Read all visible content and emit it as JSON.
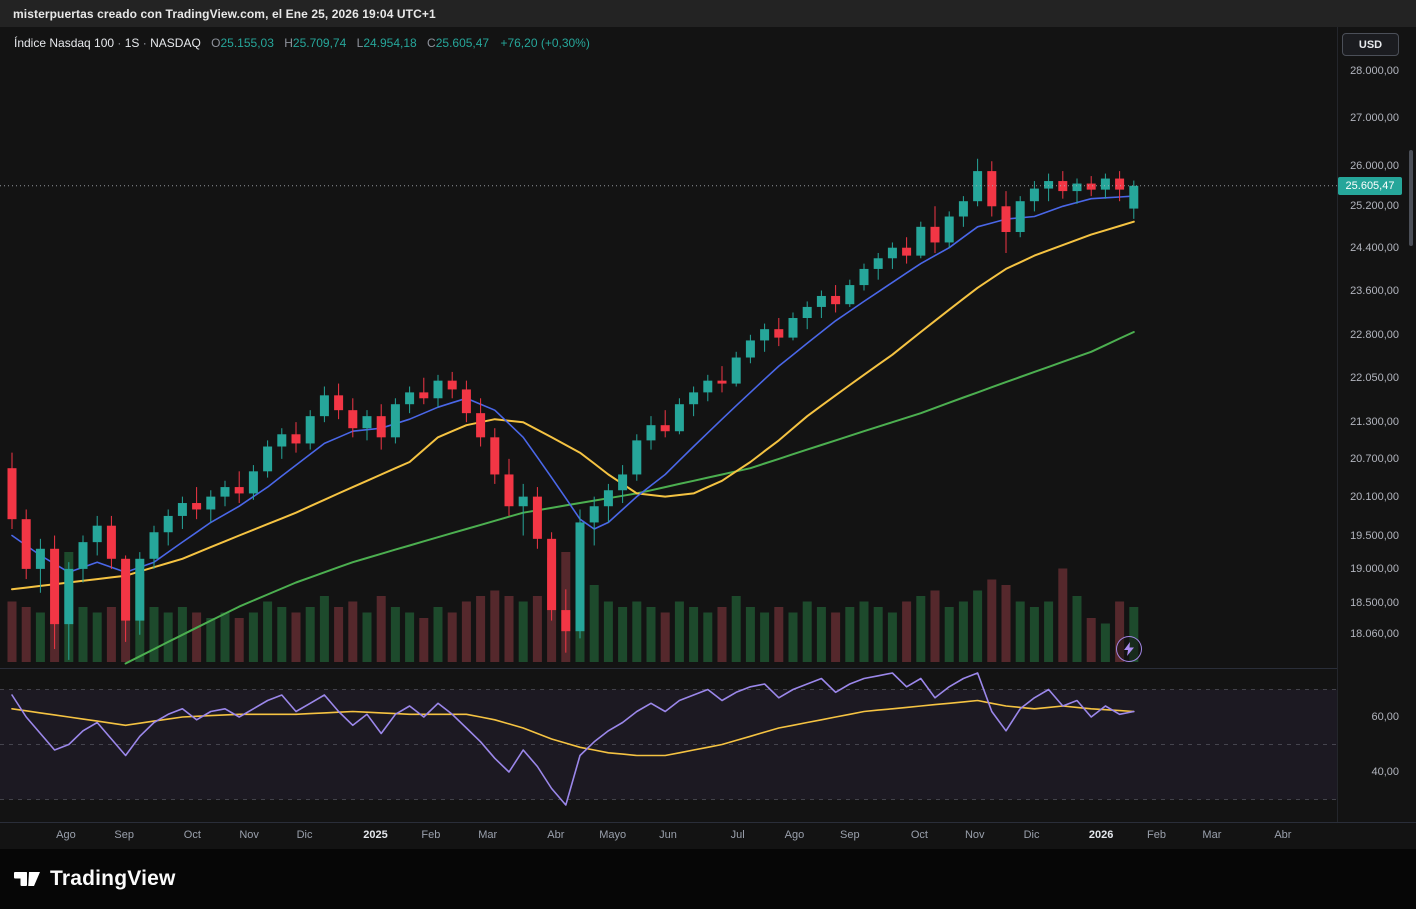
{
  "attribution": "misterpuertas creado con TradingView.com, el Ene 25, 2026 19:04 UTC+1",
  "currency_button": "USD",
  "price_label": "25.605,47",
  "logo_text": "TradingView",
  "legend": {
    "symbol": "Índice Nasdaq 100",
    "sep": " · ",
    "interval": "1S",
    "exchange": "NASDAQ",
    "o_label": "O",
    "o": "25.155,03",
    "h_label": "H",
    "h": "25.709,74",
    "l_label": "L",
    "l": "24.954,18",
    "c_label": "C",
    "c": "25.605,47",
    "change": "+76,20 (+0,30%)"
  },
  "colors": {
    "up": "#26a69a",
    "down": "#f23645",
    "ma_fast": "#4a67e8",
    "ma_mid": "#f5c342",
    "ma_slow": "#4caf50",
    "rsi": "#9b87ea",
    "rsi_ma": "#f5c342",
    "vol_up": "#1d4a2c",
    "vol_down": "#55282c",
    "last_price_line": "#b2b5be"
  },
  "price_axis": [
    {
      "label": "28.000,00",
      "value": 28000
    },
    {
      "label": "27.000,00",
      "value": 27000
    },
    {
      "label": "26.000,00",
      "value": 26000
    },
    {
      "label": "25.200,00",
      "value": 25200
    },
    {
      "label": "24.400,00",
      "value": 24400
    },
    {
      "label": "23.600,00",
      "value": 23600
    },
    {
      "label": "22.800,00",
      "value": 22800
    },
    {
      "label": "22.050,00",
      "value": 22050
    },
    {
      "label": "21.300,00",
      "value": 21300
    },
    {
      "label": "20.700,00",
      "value": 20700
    },
    {
      "label": "20.100,00",
      "value": 20100
    },
    {
      "label": "19.500,00",
      "value": 19500
    },
    {
      "label": "19.000,00",
      "value": 19000
    },
    {
      "label": "18.500,00",
      "value": 18500
    },
    {
      "label": "18.060,00",
      "value": 18060
    }
  ],
  "rsi_axis": [
    {
      "label": "60,00",
      "value": 60
    },
    {
      "label": "40,00",
      "value": 40
    }
  ],
  "time_axis": [
    {
      "label": "Ago",
      "week": 3.8,
      "year": false
    },
    {
      "label": "Sep",
      "week": 7.9,
      "year": false
    },
    {
      "label": "Oct",
      "week": 12.7,
      "year": false
    },
    {
      "label": "Nov",
      "week": 16.7,
      "year": false
    },
    {
      "label": "Dic",
      "week": 20.6,
      "year": false
    },
    {
      "label": "2025",
      "week": 25.6,
      "year": true
    },
    {
      "label": "Feb",
      "week": 29.5,
      "year": false
    },
    {
      "label": "Mar",
      "week": 33.5,
      "year": false
    },
    {
      "label": "Abr",
      "week": 38.3,
      "year": false
    },
    {
      "label": "Mayo",
      "week": 42.3,
      "year": false
    },
    {
      "label": "Jun",
      "week": 46.2,
      "year": false
    },
    {
      "label": "Jul",
      "week": 51.1,
      "year": false
    },
    {
      "label": "Ago",
      "week": 55.1,
      "year": false
    },
    {
      "label": "Sep",
      "week": 59.0,
      "year": false
    },
    {
      "label": "Oct",
      "week": 63.9,
      "year": false
    },
    {
      "label": "Nov",
      "week": 67.8,
      "year": false
    },
    {
      "label": "Dic",
      "week": 71.8,
      "year": false
    },
    {
      "label": "2026",
      "week": 76.7,
      "year": true
    },
    {
      "label": "Feb",
      "week": 80.6,
      "year": false
    },
    {
      "label": "Mar",
      "week": 84.5,
      "year": false
    },
    {
      "label": "Abr",
      "week": 89.5,
      "year": false
    }
  ],
  "chart_data": {
    "type": "candlestick",
    "title": "Índice Nasdaq 100",
    "interval": "1S (weekly)",
    "exchange": "NASDAQ",
    "currency": "USD",
    "last_price": 25605.47,
    "change": 76.2,
    "change_pct": 0.3,
    "ohlc_current": {
      "o": 25155.03,
      "h": 25709.74,
      "l": 24954.18,
      "c": 25605.47
    },
    "y_scale": "log",
    "ylim": [
      17700,
      28400
    ],
    "rsi_bands": [
      70,
      50,
      30
    ],
    "candles": [
      [
        20550,
        20800,
        19600,
        19750,
        0.55
      ],
      [
        19750,
        19900,
        18850,
        19000,
        0.5
      ],
      [
        19000,
        19450,
        18650,
        19300,
        0.45
      ],
      [
        19300,
        19500,
        17850,
        18200,
        0.8
      ],
      [
        18200,
        19100,
        17700,
        19000,
        1.0
      ],
      [
        19000,
        19500,
        18800,
        19400,
        0.5
      ],
      [
        19400,
        19800,
        19200,
        19650,
        0.45
      ],
      [
        19650,
        19800,
        19000,
        19150,
        0.5
      ],
      [
        19150,
        19200,
        17950,
        18250,
        0.85
      ],
      [
        18250,
        19250,
        18050,
        19150,
        0.8
      ],
      [
        19150,
        19650,
        19000,
        19550,
        0.5
      ],
      [
        19550,
        19900,
        19350,
        19800,
        0.45
      ],
      [
        19800,
        20100,
        19600,
        20000,
        0.5
      ],
      [
        20000,
        20250,
        19750,
        19900,
        0.45
      ],
      [
        19900,
        20200,
        19700,
        20100,
        0.4
      ],
      [
        20100,
        20350,
        19950,
        20250,
        0.45
      ],
      [
        20250,
        20500,
        20000,
        20150,
        0.4
      ],
      [
        20150,
        20600,
        20050,
        20500,
        0.45
      ],
      [
        20500,
        21000,
        20400,
        20900,
        0.55
      ],
      [
        20900,
        21200,
        20700,
        21100,
        0.5
      ],
      [
        21100,
        21300,
        20800,
        20950,
        0.45
      ],
      [
        20950,
        21500,
        20850,
        21400,
        0.5
      ],
      [
        21400,
        21900,
        21300,
        21750,
        0.6
      ],
      [
        21750,
        21950,
        21350,
        21500,
        0.5
      ],
      [
        21500,
        21700,
        21050,
        21200,
        0.55
      ],
      [
        21200,
        21500,
        21000,
        21400,
        0.45
      ],
      [
        21400,
        21600,
        20850,
        21050,
        0.6
      ],
      [
        21050,
        21700,
        20950,
        21600,
        0.5
      ],
      [
        21600,
        21900,
        21450,
        21800,
        0.45
      ],
      [
        21800,
        22050,
        21600,
        21700,
        0.4
      ],
      [
        21700,
        22100,
        21550,
        22000,
        0.5
      ],
      [
        22000,
        22150,
        21700,
        21850,
        0.45
      ],
      [
        21850,
        22000,
        21300,
        21450,
        0.55
      ],
      [
        21450,
        21700,
        20900,
        21050,
        0.6
      ],
      [
        21050,
        21200,
        20300,
        20450,
        0.65
      ],
      [
        20450,
        20700,
        19800,
        19950,
        0.6
      ],
      [
        19950,
        20300,
        19500,
        20100,
        0.55
      ],
      [
        20100,
        20250,
        19300,
        19450,
        0.6
      ],
      [
        19450,
        19550,
        18250,
        18400,
        0.95
      ],
      [
        18400,
        18700,
        17800,
        18100,
        1.0
      ],
      [
        18100,
        19900,
        18000,
        19700,
        0.9
      ],
      [
        19700,
        20100,
        19350,
        19950,
        0.7
      ],
      [
        19950,
        20300,
        19700,
        20200,
        0.55
      ],
      [
        20200,
        20600,
        20000,
        20450,
        0.5
      ],
      [
        20450,
        21100,
        20350,
        21000,
        0.55
      ],
      [
        21000,
        21400,
        20850,
        21250,
        0.5
      ],
      [
        21250,
        21500,
        21050,
        21150,
        0.45
      ],
      [
        21150,
        21700,
        21100,
        21600,
        0.55
      ],
      [
        21600,
        21900,
        21400,
        21800,
        0.5
      ],
      [
        21800,
        22100,
        21650,
        22000,
        0.45
      ],
      [
        22000,
        22250,
        21800,
        21950,
        0.5
      ],
      [
        21950,
        22500,
        21900,
        22400,
        0.6
      ],
      [
        22400,
        22800,
        22300,
        22700,
        0.5
      ],
      [
        22700,
        23000,
        22500,
        22900,
        0.45
      ],
      [
        22900,
        23100,
        22600,
        22750,
        0.5
      ],
      [
        22750,
        23200,
        22700,
        23100,
        0.45
      ],
      [
        23100,
        23400,
        22900,
        23300,
        0.55
      ],
      [
        23300,
        23600,
        23100,
        23500,
        0.5
      ],
      [
        23500,
        23700,
        23200,
        23350,
        0.45
      ],
      [
        23350,
        23800,
        23300,
        23700,
        0.5
      ],
      [
        23700,
        24100,
        23600,
        24000,
        0.55
      ],
      [
        24000,
        24300,
        23800,
        24200,
        0.5
      ],
      [
        24200,
        24500,
        24000,
        24400,
        0.45
      ],
      [
        24400,
        24600,
        24100,
        24250,
        0.55
      ],
      [
        24250,
        24900,
        24200,
        24800,
        0.6
      ],
      [
        24800,
        25200,
        24300,
        24500,
        0.65
      ],
      [
        24500,
        25100,
        24400,
        25000,
        0.5
      ],
      [
        25000,
        25400,
        24800,
        25300,
        0.55
      ],
      [
        25300,
        26150,
        25200,
        25900,
        0.65
      ],
      [
        25900,
        26100,
        25000,
        25200,
        0.75
      ],
      [
        25200,
        25500,
        24300,
        24700,
        0.7
      ],
      [
        24700,
        25400,
        24600,
        25300,
        0.55
      ],
      [
        25300,
        25700,
        25100,
        25550,
        0.5
      ],
      [
        25550,
        25850,
        25300,
        25700,
        0.55
      ],
      [
        25700,
        25900,
        25350,
        25500,
        0.85
      ],
      [
        25500,
        25750,
        25250,
        25650,
        0.6
      ],
      [
        25650,
        25800,
        25400,
        25529,
        0.4
      ],
      [
        25529,
        25850,
        25350,
        25750,
        0.35
      ],
      [
        25750,
        25900,
        25300,
        25529.27,
        0.55
      ],
      [
        25155.03,
        25709.74,
        24954.18,
        25605.47,
        0.5
      ]
    ],
    "ma_blue": [
      [
        0,
        19500
      ],
      [
        2,
        19200
      ],
      [
        4,
        18950
      ],
      [
        6,
        19100
      ],
      [
        8,
        18950
      ],
      [
        10,
        19100
      ],
      [
        12,
        19400
      ],
      [
        14,
        19700
      ],
      [
        16,
        19950
      ],
      [
        18,
        20250
      ],
      [
        20,
        20600
      ],
      [
        22,
        20950
      ],
      [
        24,
        21150
      ],
      [
        26,
        21200
      ],
      [
        28,
        21350
      ],
      [
        30,
        21550
      ],
      [
        32,
        21700
      ],
      [
        34,
        21500
      ],
      [
        36,
        21050
      ],
      [
        38,
        20400
      ],
      [
        40,
        19750
      ],
      [
        41,
        19600
      ],
      [
        42,
        19700
      ],
      [
        44,
        20100
      ],
      [
        46,
        20450
      ],
      [
        48,
        20900
      ],
      [
        50,
        21350
      ],
      [
        52,
        21800
      ],
      [
        54,
        22250
      ],
      [
        56,
        22650
      ],
      [
        58,
        23050
      ],
      [
        60,
        23400
      ],
      [
        62,
        23750
      ],
      [
        64,
        24100
      ],
      [
        66,
        24400
      ],
      [
        68,
        24800
      ],
      [
        70,
        24950
      ],
      [
        72,
        25000
      ],
      [
        74,
        25200
      ],
      [
        76,
        25350
      ],
      [
        79,
        25400
      ]
    ],
    "ma_yellow": [
      [
        0,
        18700
      ],
      [
        4,
        18800
      ],
      [
        8,
        18900
      ],
      [
        12,
        19150
      ],
      [
        16,
        19500
      ],
      [
        20,
        19850
      ],
      [
        24,
        20250
      ],
      [
        28,
        20650
      ],
      [
        30,
        21050
      ],
      [
        32,
        21250
      ],
      [
        34,
        21350
      ],
      [
        36,
        21300
      ],
      [
        38,
        21050
      ],
      [
        40,
        20800
      ],
      [
        42,
        20450
      ],
      [
        44,
        20150
      ],
      [
        46,
        20100
      ],
      [
        48,
        20150
      ],
      [
        50,
        20350
      ],
      [
        52,
        20650
      ],
      [
        54,
        21000
      ],
      [
        56,
        21400
      ],
      [
        58,
        21750
      ],
      [
        60,
        22100
      ],
      [
        62,
        22450
      ],
      [
        64,
        22850
      ],
      [
        66,
        23250
      ],
      [
        68,
        23650
      ],
      [
        70,
        24000
      ],
      [
        72,
        24250
      ],
      [
        74,
        24450
      ],
      [
        76,
        24650
      ],
      [
        79,
        24900
      ]
    ],
    "ma_green": [
      [
        8,
        17650
      ],
      [
        12,
        18050
      ],
      [
        16,
        18450
      ],
      [
        20,
        18800
      ],
      [
        24,
        19100
      ],
      [
        28,
        19350
      ],
      [
        32,
        19600
      ],
      [
        36,
        19850
      ],
      [
        40,
        20000
      ],
      [
        44,
        20150
      ],
      [
        48,
        20350
      ],
      [
        52,
        20550
      ],
      [
        56,
        20850
      ],
      [
        60,
        21150
      ],
      [
        64,
        21450
      ],
      [
        68,
        21800
      ],
      [
        72,
        22150
      ],
      [
        76,
        22500
      ],
      [
        79,
        22850
      ]
    ],
    "rsi": [
      68,
      60,
      54,
      48,
      50,
      55,
      58,
      52,
      46,
      53,
      58,
      61,
      63,
      59,
      62,
      63,
      60,
      63,
      66,
      68,
      62,
      65,
      68,
      62,
      57,
      61,
      54,
      61,
      64,
      60,
      65,
      61,
      56,
      51,
      45,
      40,
      48,
      42,
      34,
      28,
      46,
      51,
      55,
      58,
      62,
      65,
      62,
      66,
      68,
      70,
      66,
      69,
      71,
      72,
      67,
      70,
      72,
      74,
      69,
      72,
      74,
      75,
      76,
      71,
      74,
      67,
      71,
      74,
      76,
      62,
      55,
      63,
      67,
      70,
      64,
      66,
      60,
      64,
      61,
      62
    ],
    "rsi_ma": [
      [
        0,
        63
      ],
      [
        4,
        60
      ],
      [
        8,
        57
      ],
      [
        12,
        60
      ],
      [
        16,
        61
      ],
      [
        20,
        61
      ],
      [
        24,
        62
      ],
      [
        28,
        61
      ],
      [
        32,
        61
      ],
      [
        34,
        59
      ],
      [
        36,
        56
      ],
      [
        38,
        52
      ],
      [
        40,
        49
      ],
      [
        42,
        47
      ],
      [
        44,
        46
      ],
      [
        46,
        46
      ],
      [
        48,
        48
      ],
      [
        50,
        50
      ],
      [
        52,
        53
      ],
      [
        54,
        56
      ],
      [
        56,
        58
      ],
      [
        58,
        60
      ],
      [
        60,
        62
      ],
      [
        62,
        63
      ],
      [
        64,
        64
      ],
      [
        66,
        65
      ],
      [
        68,
        66
      ],
      [
        70,
        64
      ],
      [
        72,
        63
      ],
      [
        74,
        64
      ],
      [
        76,
        63
      ],
      [
        79,
        62
      ]
    ]
  }
}
